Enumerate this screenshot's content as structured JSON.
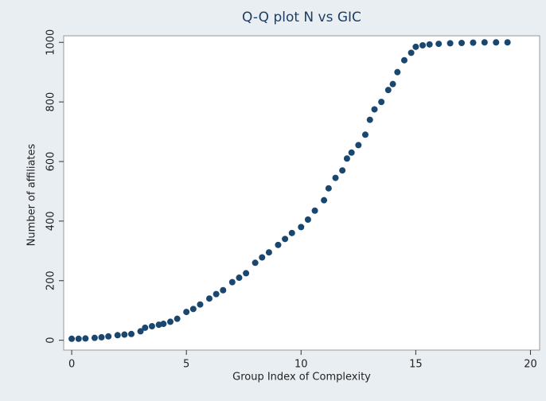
{
  "chart_data": {
    "type": "scatter",
    "title": "Q-Q plot N vs GIC",
    "x_label": "Group Index of Complexity",
    "y_label": "Number of affiliates",
    "color": "#1a476f",
    "x": [
      0,
      0.3,
      0.6,
      1,
      1.3,
      1.6,
      2,
      2.3,
      2.6,
      3,
      3.2,
      3.5,
      3.8,
      4,
      4.3,
      4.6,
      5,
      5.3,
      5.6,
      6,
      6.3,
      6.6,
      7,
      7.3,
      7.6,
      8,
      8.3,
      8.6,
      9,
      9.3,
      9.6,
      10,
      10.3,
      10.6,
      11,
      11.2,
      11.5,
      11.8,
      12,
      12.2,
      12.5,
      12.8,
      13,
      13.2,
      13.5,
      13.8,
      14,
      14.2,
      14.5,
      14.8,
      15,
      15.3,
      15.6,
      16,
      16.5,
      17,
      17.5,
      18,
      18.5,
      19
    ],
    "values": [
      5,
      5,
      6,
      8,
      10,
      13,
      17,
      19,
      21,
      30,
      42,
      47,
      52,
      55,
      62,
      72,
      95,
      105,
      120,
      140,
      155,
      168,
      195,
      210,
      225,
      260,
      278,
      295,
      320,
      340,
      360,
      380,
      405,
      435,
      470,
      510,
      545,
      570,
      610,
      630,
      655,
      690,
      740,
      775,
      800,
      840,
      860,
      900,
      940,
      965,
      985,
      990,
      993,
      995,
      997,
      998,
      999,
      1000,
      1000,
      1000
    ],
    "xlim": [
      -0.35,
      20.4
    ],
    "ylim": [
      -33,
      1022
    ],
    "xticks": [
      0,
      5,
      10,
      15,
      20
    ],
    "yticks": [
      0,
      200,
      400,
      600,
      800,
      1000
    ]
  }
}
